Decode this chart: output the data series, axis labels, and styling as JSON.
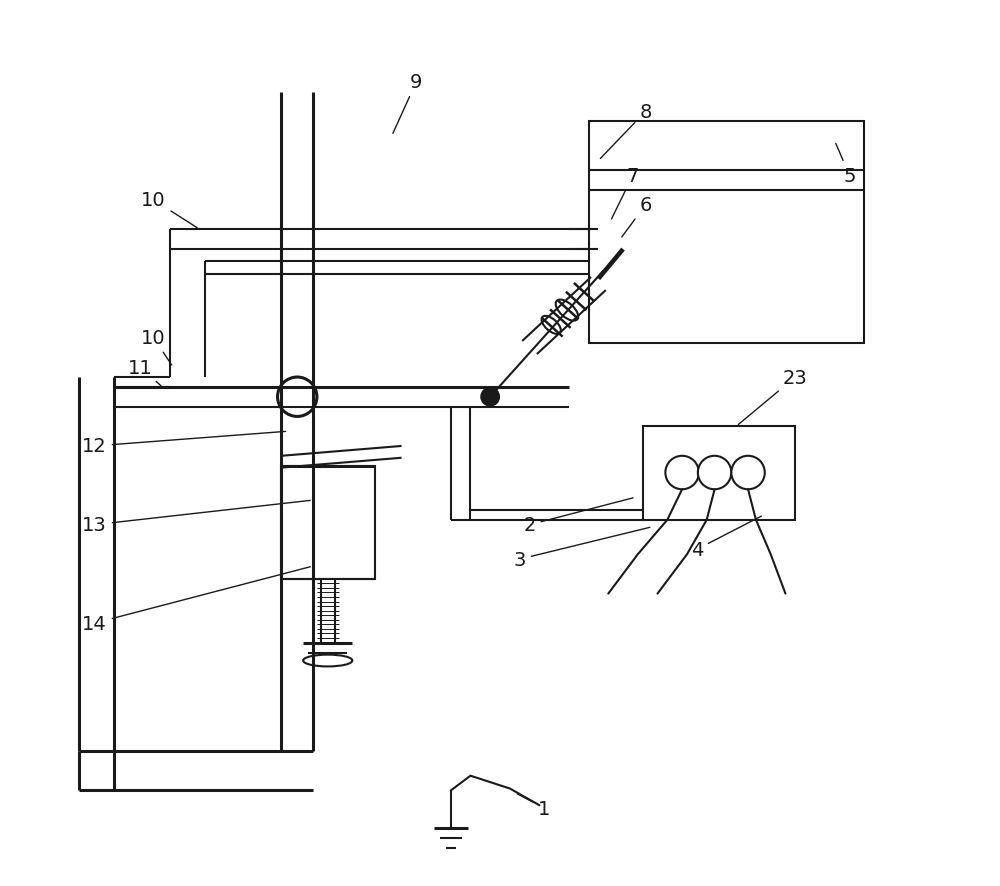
{
  "bg_color": "#ffffff",
  "line_color": "#1a1a1a",
  "lw": 1.5,
  "lw2": 2.2,
  "label_fs": 14,
  "fig_w": 10.0,
  "fig_h": 8.87
}
